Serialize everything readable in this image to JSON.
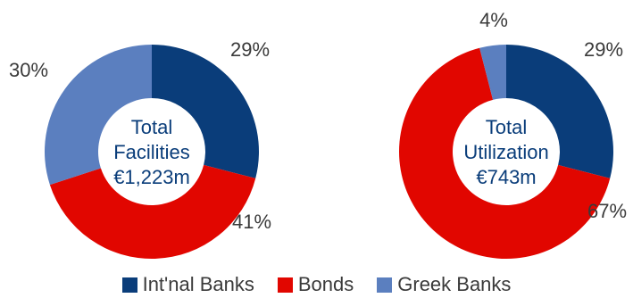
{
  "colors": {
    "intl_banks": "#0a3d7a",
    "bonds": "#e10600",
    "greek_banks": "#5b7fbf",
    "center_text": "#0a3d7a"
  },
  "legend": [
    {
      "label": "Int'nal Banks",
      "color": "#0a3d7a"
    },
    {
      "label": "Bonds",
      "color": "#e10600"
    },
    {
      "label": "Greek Banks",
      "color": "#5b7fbf"
    }
  ],
  "chart_data": [
    {
      "type": "pie",
      "style": "donut",
      "center_text": [
        "Total",
        "Facilities",
        "€1,223m"
      ],
      "categories": [
        "Int'nal Banks",
        "Bonds",
        "Greek Banks"
      ],
      "values": [
        29,
        41,
        30
      ],
      "value_labels": [
        "29%",
        "41%",
        "30%"
      ]
    },
    {
      "type": "pie",
      "style": "donut",
      "center_text": [
        "Total",
        "Utilization",
        "€743m"
      ],
      "categories": [
        "Int'nal Banks",
        "Bonds",
        "Greek Banks"
      ],
      "values": [
        29,
        67,
        4
      ],
      "value_labels": [
        "29%",
        "67%",
        "4%"
      ]
    }
  ]
}
